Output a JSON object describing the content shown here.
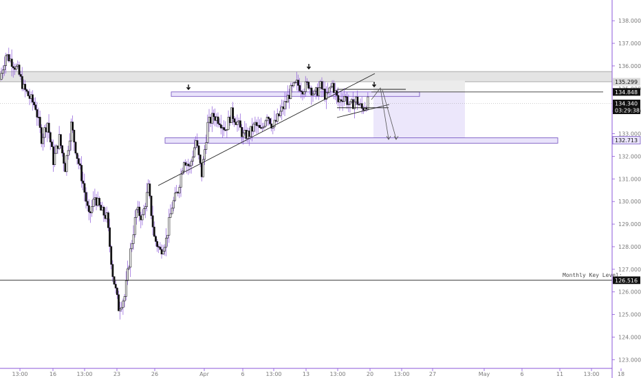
{
  "chart_data": {
    "type": "candlestick",
    "title": "",
    "y_axis": {
      "range": [
        122.8,
        138.3
      ],
      "ticks": [
        "123.000",
        "124.000",
        "125.000",
        "126.000",
        "127.000",
        "128.000",
        "129.000",
        "130.000",
        "131.000",
        "132.000",
        "133.000",
        "134.000",
        "135.000",
        "136.000",
        "137.000",
        "138.000"
      ]
    },
    "x_axis": {
      "ticks": [
        "13:00",
        "16",
        "13:00",
        "23",
        "26",
        "Apr",
        "6",
        "13:00",
        "13",
        "13:00",
        "20",
        "13:00",
        "27",
        "May",
        "6",
        "11",
        "13:00",
        "18"
      ]
    },
    "price_tags": [
      {
        "name": "zone-top",
        "value": "135.299",
        "style": "light"
      },
      {
        "name": "resistance",
        "value": "134.848",
        "style": "dark"
      },
      {
        "name": "last-price",
        "value": "134.340",
        "style": "dark"
      },
      {
        "name": "countdown",
        "value": "03:29:38",
        "style": "dark"
      },
      {
        "name": "target",
        "value": "132.713",
        "style": "purple"
      },
      {
        "name": "monthly-key",
        "value": "126.516",
        "style": "dark"
      }
    ],
    "annotations": {
      "monthly_key_label": "Monthly Key Level;"
    },
    "key_levels": {
      "monthly_key": 126.516,
      "resistance": 134.848,
      "last_price": 134.34,
      "target": 132.713,
      "supply_zone": [
        135.299,
        135.75
      ]
    },
    "price_path": [
      [
        0,
        135.4
      ],
      [
        2,
        136.5
      ],
      [
        4,
        136.2
      ],
      [
        6,
        135.8
      ],
      [
        8,
        135.0
      ],
      [
        10,
        134.6
      ],
      [
        12,
        134.2
      ],
      [
        14,
        132.8
      ],
      [
        16,
        133.5
      ],
      [
        18,
        131.8
      ],
      [
        20,
        132.8
      ],
      [
        22,
        131.5
      ],
      [
        24,
        133.4
      ],
      [
        26,
        132.0
      ],
      [
        28,
        130.8
      ],
      [
        30,
        129.3
      ],
      [
        32,
        130.2
      ],
      [
        34,
        129.6
      ],
      [
        36,
        129.3
      ],
      [
        38,
        126.8
      ],
      [
        40,
        125.3
      ],
      [
        42,
        125.8
      ],
      [
        44,
        127.8
      ],
      [
        46,
        129.6
      ],
      [
        48,
        129.3
      ],
      [
        50,
        130.6
      ],
      [
        52,
        128.4
      ],
      [
        54,
        127.8
      ],
      [
        56,
        128.3
      ],
      [
        58,
        129.8
      ],
      [
        60,
        130.5
      ],
      [
        62,
        131.9
      ],
      [
        64,
        131.5
      ],
      [
        66,
        132.7
      ],
      [
        68,
        131.2
      ],
      [
        70,
        133.4
      ],
      [
        72,
        133.8
      ],
      [
        74,
        133.6
      ],
      [
        76,
        133.2
      ],
      [
        78,
        133.9
      ],
      [
        80,
        133.5
      ],
      [
        82,
        132.9
      ],
      [
        84,
        133.0
      ],
      [
        86,
        133.4
      ],
      [
        88,
        133.1
      ],
      [
        90,
        133.9
      ],
      [
        92,
        133.3
      ],
      [
        94,
        133.8
      ],
      [
        96,
        134.3
      ],
      [
        98,
        134.9
      ],
      [
        100,
        135.2
      ],
      [
        102,
        135.0
      ],
      [
        104,
        135.2
      ],
      [
        106,
        134.7
      ],
      [
        108,
        135.1
      ],
      [
        110,
        134.6
      ],
      [
        112,
        135.2
      ],
      [
        114,
        134.4
      ],
      [
        116,
        134.7
      ],
      [
        118,
        134.2
      ],
      [
        120,
        134.5
      ],
      [
        122,
        134.1
      ],
      [
        124,
        134.4
      ]
    ],
    "candles_per_unit": 2
  }
}
